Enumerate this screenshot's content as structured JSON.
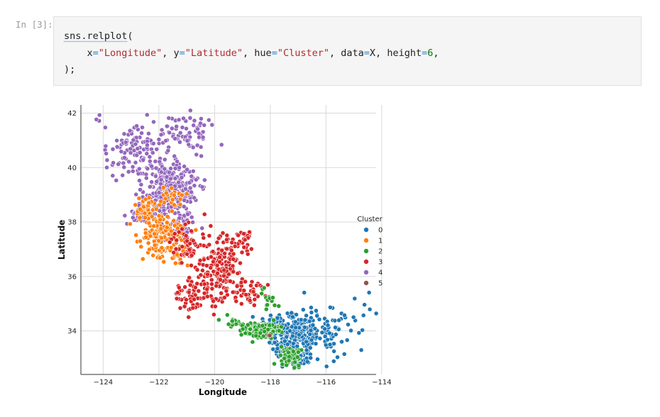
{
  "cell": {
    "prompt": "In [3]:",
    "code": {
      "line1_fn": "sns.relplot",
      "line1_paren": "(",
      "line2_indent": "    ",
      "kw_x": "x",
      "eq": "=",
      "val_x": "\"Longitude\"",
      "sep": ", ",
      "kw_y": "y",
      "val_y": "\"Latitude\"",
      "kw_hue": "hue",
      "val_hue": "\"Cluster\"",
      "kw_data": "data",
      "val_data": "X",
      "kw_height": "height",
      "val_height": "6",
      "trail": ",",
      "line3": ");"
    }
  },
  "chart_data": {
    "type": "scatter",
    "title": "",
    "xlabel": "Longitude",
    "ylabel": "Latitude",
    "xlim": [
      -124.8,
      -114.2
    ],
    "ylim": [
      32.4,
      42.3
    ],
    "xticks": [
      -124,
      -122,
      -120,
      -118,
      -116,
      -114
    ],
    "xtick_labels": [
      "−124",
      "−122",
      "−120",
      "−118",
      "−116",
      "−114"
    ],
    "yticks": [
      34,
      36,
      38,
      40,
      42
    ],
    "ytick_labels": [
      "34",
      "36",
      "38",
      "40",
      "42"
    ],
    "grid": true,
    "legend_placement": "right",
    "legend_title": "Cluster",
    "series": [
      {
        "name": "0",
        "color": "#1f77b4",
        "regions": [
          [
            -117.2,
            33.8,
            0.8,
            0.7,
            260
          ],
          [
            -116.3,
            33.9,
            0.9,
            0.8,
            70
          ],
          [
            -115.0,
            34.5,
            0.8,
            0.9,
            22
          ],
          [
            -118.0,
            34.2,
            0.5,
            0.3,
            60
          ],
          [
            -117.0,
            32.9,
            0.3,
            0.2,
            40
          ]
        ]
      },
      {
        "name": "1",
        "color": "#ff7f0e",
        "regions": [
          [
            -121.9,
            37.5,
            0.6,
            0.6,
            150
          ],
          [
            -122.4,
            38.4,
            0.4,
            0.4,
            45
          ],
          [
            -121.5,
            38.8,
            0.5,
            0.5,
            25
          ],
          [
            -121.3,
            36.8,
            0.3,
            0.3,
            20
          ]
        ]
      },
      {
        "name": "2",
        "color": "#2ca02c",
        "regions": [
          [
            -118.3,
            34.0,
            0.5,
            0.2,
            160
          ],
          [
            -117.3,
            33.1,
            0.3,
            0.3,
            75
          ],
          [
            -118.1,
            35.2,
            0.3,
            0.4,
            14
          ],
          [
            -119.3,
            34.3,
            0.4,
            0.15,
            22
          ]
        ]
      },
      {
        "name": "3",
        "color": "#d62728",
        "regions": [
          [
            -119.8,
            36.4,
            0.7,
            1.0,
            180
          ],
          [
            -120.8,
            35.3,
            0.5,
            0.5,
            65
          ],
          [
            -121.0,
            37.2,
            0.4,
            0.5,
            50
          ],
          [
            -118.8,
            35.4,
            0.5,
            0.4,
            40
          ],
          [
            -119.0,
            37.3,
            0.5,
            0.5,
            20
          ]
        ]
      },
      {
        "name": "4",
        "color": "#9467bd",
        "regions": [
          [
            -121.5,
            39.2,
            0.8,
            0.8,
            300
          ],
          [
            -123.0,
            40.6,
            0.9,
            0.9,
            110
          ],
          [
            -121.0,
            41.2,
            0.9,
            0.6,
            75
          ],
          [
            -122.6,
            38.3,
            0.4,
            0.3,
            60
          ],
          [
            -121.2,
            37.9,
            0.5,
            0.4,
            40
          ]
        ]
      },
      {
        "name": "5",
        "color": "#8c564b",
        "regions": [
          [
            -118.0,
            33.8,
            0.05,
            0.05,
            2
          ]
        ]
      }
    ]
  }
}
